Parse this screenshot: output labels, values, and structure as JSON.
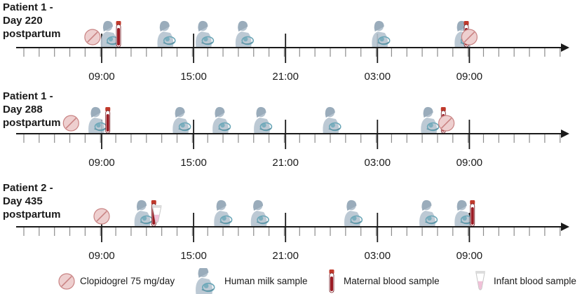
{
  "panels": [
    {
      "label": "Patient 1 -\nDay 220\npostpartum",
      "time_labels": [
        "09:00",
        "15:00",
        "21:00",
        "03:00",
        "09:00"
      ],
      "events": [
        {
          "type": "clopidogrel",
          "time": 8.4
        },
        {
          "type": "milk",
          "time": 9.5
        },
        {
          "type": "maternal_blood",
          "time": 10.1
        },
        {
          "type": "milk",
          "time": 13.2
        },
        {
          "type": "milk",
          "time": 15.7
        },
        {
          "type": "milk",
          "time": 18.3
        },
        {
          "type": "milk",
          "time": 27.2
        },
        {
          "type": "milk",
          "time": 32.6
        },
        {
          "type": "maternal_blood",
          "time": 32.8
        },
        {
          "type": "clopidogrel",
          "time": 33.0
        }
      ]
    },
    {
      "label": "Patient 1 -\nDay 288\npostpartum",
      "time_labels": [
        "09:00",
        "15:00",
        "21:00",
        "03:00",
        "09:00"
      ],
      "events": [
        {
          "type": "clopidogrel",
          "time": 7.0
        },
        {
          "type": "milk",
          "time": 8.7
        },
        {
          "type": "maternal_blood",
          "time": 9.4
        },
        {
          "type": "milk",
          "time": 14.2
        },
        {
          "type": "milk",
          "time": 16.8
        },
        {
          "type": "milk",
          "time": 19.5
        },
        {
          "type": "milk",
          "time": 24.0
        },
        {
          "type": "milk",
          "time": 30.4
        },
        {
          "type": "maternal_blood",
          "time": 31.3
        },
        {
          "type": "clopidogrel",
          "time": 31.5
        }
      ]
    },
    {
      "label": "Patient 2 -\nDay 435\npostpartum",
      "time_labels": [
        "09:00",
        "15:00",
        "21:00",
        "03:00",
        "09:00"
      ],
      "events": [
        {
          "type": "clopidogrel",
          "time": 9.0
        },
        {
          "type": "milk",
          "time": 11.7
        },
        {
          "type": "maternal_blood",
          "time": 12.4
        },
        {
          "type": "infant_blood",
          "time": 12.6
        },
        {
          "type": "milk",
          "time": 16.9
        },
        {
          "type": "milk",
          "time": 19.3
        },
        {
          "type": "milk",
          "time": 25.4
        },
        {
          "type": "milk",
          "time": 30.3
        },
        {
          "type": "milk",
          "time": 32.6
        },
        {
          "type": "maternal_blood",
          "time": 33.2
        }
      ]
    }
  ],
  "legend": [
    {
      "type": "clopidogrel",
      "label": "Clopidogrel 75 mg/day"
    },
    {
      "type": "milk",
      "label": "Human milk sample"
    },
    {
      "type": "maternal_blood",
      "label": "Maternal blood sample"
    },
    {
      "type": "infant_blood",
      "label": "Infant blood sample"
    }
  ],
  "icons": {
    "clopidogrel": "pill-icon",
    "milk": "breastfeeding-mother-icon",
    "maternal_blood": "blood-tube-icon",
    "infant_blood": "microtube-icon"
  },
  "colors": {
    "axis": "#1a1a1a",
    "minor_tick": "#8c8c8c",
    "pill_fill": "#eecfcf",
    "pill_stroke": "#c98383",
    "tube_red": "#9b1b24",
    "tube_cap": "#c0392b",
    "milk_figure": "#b5c3cf",
    "milk_baby": "#6ba7b8",
    "infant_tube": "#f1c1d8"
  }
}
